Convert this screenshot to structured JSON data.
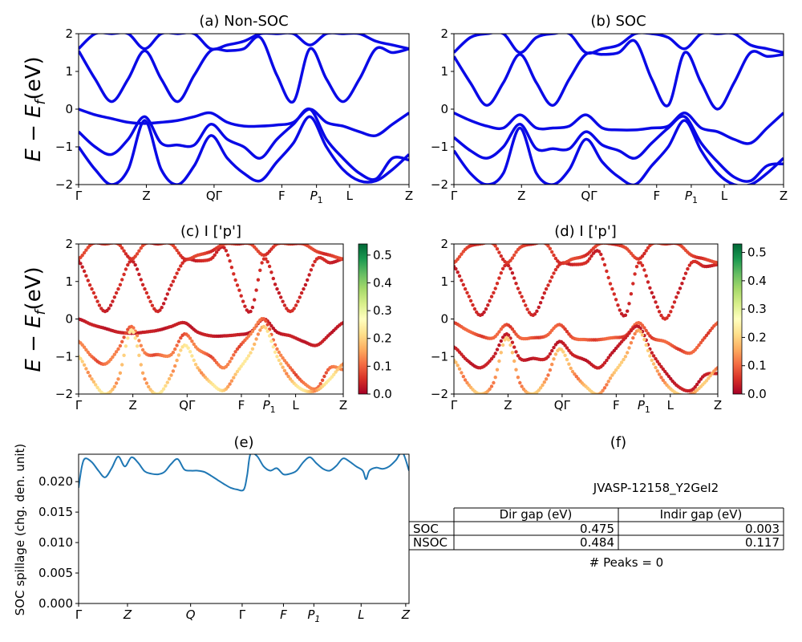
{
  "chart_data": [
    {
      "id": "a",
      "type": "line",
      "title": "(a) Non-SOC",
      "ylabel": "E − E",
      "ylabel_sub": "f",
      "ylabel_unit": "(eV)",
      "ylim": [
        -2,
        2
      ],
      "yticks": [
        "2",
        "1",
        "0",
        "−1",
        "−2"
      ],
      "kpoints": [
        "Γ",
        "Z",
        "QΓ",
        "F",
        "P1",
        "L",
        "Z"
      ],
      "kpoint_fracs": [
        0.0,
        0.205,
        0.41,
        0.615,
        0.72,
        0.82,
        1.0
      ],
      "bands": [
        {
          "x": [
            0.0,
            0.05,
            0.1,
            0.15,
            0.2,
            0.25,
            0.3,
            0.35,
            0.4,
            0.45,
            0.5,
            0.55,
            0.6,
            0.65,
            0.7,
            0.75,
            0.8,
            0.85,
            0.9,
            0.95,
            1.0
          ],
          "y": [
            0.0,
            -0.15,
            -0.25,
            -0.35,
            -0.38,
            -0.35,
            -0.3,
            -0.2,
            -0.1,
            -0.35,
            -0.45,
            -0.45,
            -0.42,
            -0.35,
            0.0,
            -0.35,
            -0.45,
            -0.6,
            -0.7,
            -0.4,
            -0.1
          ]
        },
        {
          "x": [
            0.0,
            0.05,
            0.1,
            0.15,
            0.2,
            0.25,
            0.3,
            0.35,
            0.4,
            0.45,
            0.5,
            0.55,
            0.6,
            0.65,
            0.7,
            0.75,
            0.8,
            0.85,
            0.9,
            0.95,
            1.0
          ],
          "y": [
            -0.6,
            -1.0,
            -1.2,
            -0.8,
            -0.2,
            -0.9,
            -0.95,
            -0.95,
            -0.4,
            -0.8,
            -1.0,
            -1.3,
            -0.8,
            -0.4,
            0.0,
            -0.8,
            -1.3,
            -1.7,
            -1.85,
            -1.3,
            -1.35
          ]
        },
        {
          "x": [
            0.0,
            0.05,
            0.1,
            0.15,
            0.2,
            0.25,
            0.3,
            0.35,
            0.4,
            0.45,
            0.5,
            0.55,
            0.6,
            0.65,
            0.7,
            0.75,
            0.8,
            0.85,
            0.9,
            0.95,
            1.0
          ],
          "y": [
            -1.0,
            -1.6,
            -2.0,
            -1.6,
            -0.3,
            -1.6,
            -2.0,
            -1.5,
            -0.7,
            -1.3,
            -1.7,
            -1.9,
            -1.4,
            -0.9,
            -0.2,
            -1.0,
            -1.6,
            -1.9,
            -1.9,
            -1.6,
            -1.2
          ]
        },
        {
          "x": [
            0.0,
            0.05,
            0.1,
            0.15,
            0.2,
            0.25,
            0.3,
            0.35,
            0.4,
            0.45,
            0.5,
            0.55,
            0.6,
            0.65,
            0.7,
            0.75,
            0.8,
            0.85,
            0.9,
            0.95,
            1.0
          ],
          "y": [
            1.55,
            0.8,
            0.2,
            0.8,
            1.55,
            0.8,
            0.2,
            0.9,
            1.55,
            1.55,
            1.6,
            1.9,
            0.9,
            0.2,
            1.6,
            0.8,
            0.2,
            0.8,
            1.6,
            1.5,
            1.6
          ]
        },
        {
          "x": [
            0.0,
            0.05,
            0.1,
            0.15,
            0.2,
            0.25,
            0.3,
            0.35,
            0.4,
            0.45,
            0.5,
            0.55,
            0.6,
            0.65,
            0.7,
            0.75,
            0.8,
            0.85,
            0.9,
            0.95,
            1.0
          ],
          "y": [
            1.6,
            2.0,
            2.0,
            2.0,
            1.6,
            2.0,
            2.0,
            2.0,
            1.6,
            1.7,
            1.8,
            2.0,
            2.0,
            2.0,
            1.7,
            2.0,
            2.0,
            2.0,
            1.8,
            1.7,
            1.6
          ]
        }
      ]
    },
    {
      "id": "b",
      "type": "line",
      "title": "(b) SOC",
      "ylim": [
        -2,
        2
      ],
      "yticks": [
        "2",
        "1",
        "0",
        "−1",
        "−2"
      ],
      "kpoints": [
        "Γ",
        "Z",
        "QΓ",
        "F",
        "P1",
        "L",
        "Z"
      ],
      "kpoint_fracs": [
        0.0,
        0.205,
        0.41,
        0.615,
        0.72,
        0.82,
        1.0
      ],
      "bands": [
        {
          "x": [
            0.0,
            0.05,
            0.1,
            0.15,
            0.2,
            0.25,
            0.3,
            0.35,
            0.4,
            0.45,
            0.5,
            0.55,
            0.6,
            0.65,
            0.7,
            0.75,
            0.8,
            0.85,
            0.9,
            0.95,
            1.0
          ],
          "y": [
            -0.1,
            -0.3,
            -0.45,
            -0.5,
            -0.15,
            -0.5,
            -0.5,
            -0.45,
            -0.15,
            -0.5,
            -0.55,
            -0.55,
            -0.5,
            -0.45,
            -0.1,
            -0.5,
            -0.6,
            -0.8,
            -0.9,
            -0.5,
            -0.1
          ]
        },
        {
          "x": [
            0.0,
            0.05,
            0.1,
            0.15,
            0.2,
            0.25,
            0.3,
            0.35,
            0.4,
            0.45,
            0.5,
            0.55,
            0.6,
            0.65,
            0.7,
            0.75,
            0.8,
            0.85,
            0.9,
            0.95,
            1.0
          ],
          "y": [
            -0.75,
            -1.1,
            -1.3,
            -1.0,
            -0.4,
            -1.05,
            -1.05,
            -1.05,
            -0.6,
            -0.95,
            -1.1,
            -1.3,
            -0.9,
            -0.5,
            -0.2,
            -0.9,
            -1.4,
            -1.8,
            -1.9,
            -1.5,
            -1.45
          ]
        },
        {
          "x": [
            0.0,
            0.05,
            0.1,
            0.15,
            0.2,
            0.25,
            0.3,
            0.35,
            0.4,
            0.45,
            0.5,
            0.55,
            0.6,
            0.65,
            0.7,
            0.75,
            0.8,
            0.85,
            0.9,
            0.95,
            1.0
          ],
          "y": [
            -1.1,
            -1.7,
            -2.0,
            -1.7,
            -0.5,
            -1.7,
            -2.0,
            -1.6,
            -0.8,
            -1.4,
            -1.8,
            -2.0,
            -1.5,
            -1.0,
            -0.3,
            -1.1,
            -1.7,
            -2.0,
            -2.0,
            -1.7,
            -1.3
          ]
        },
        {
          "x": [
            0.0,
            0.05,
            0.1,
            0.15,
            0.2,
            0.25,
            0.3,
            0.35,
            0.4,
            0.45,
            0.5,
            0.55,
            0.6,
            0.65,
            0.7,
            0.75,
            0.8,
            0.85,
            0.9,
            0.95,
            1.0
          ],
          "y": [
            1.4,
            0.7,
            0.1,
            0.7,
            1.45,
            0.7,
            0.1,
            0.8,
            1.45,
            1.45,
            1.5,
            1.8,
            0.8,
            0.1,
            1.5,
            0.7,
            0.0,
            0.7,
            1.5,
            1.4,
            1.45
          ]
        },
        {
          "x": [
            0.0,
            0.05,
            0.1,
            0.15,
            0.2,
            0.25,
            0.3,
            0.35,
            0.4,
            0.45,
            0.5,
            0.55,
            0.6,
            0.65,
            0.7,
            0.75,
            0.8,
            0.85,
            0.9,
            0.95,
            1.0
          ],
          "y": [
            1.5,
            1.9,
            2.0,
            2.0,
            1.5,
            1.9,
            2.0,
            2.0,
            1.5,
            1.6,
            1.7,
            2.0,
            2.0,
            1.9,
            1.6,
            2.0,
            2.0,
            2.0,
            1.7,
            1.6,
            1.5
          ]
        }
      ]
    },
    {
      "id": "c",
      "type": "scatter",
      "title": "(c)  I ['p']",
      "ylabel": "E − E",
      "ylabel_sub": "f",
      "ylabel_unit": "(eV)",
      "ylim": [
        -2,
        2
      ],
      "yticks": [
        "2",
        "1",
        "0",
        "−1",
        "−2"
      ],
      "kpoints": [
        "Γ",
        "Z",
        "QΓ",
        "F",
        "P1",
        "L",
        "Z"
      ],
      "kpoint_fracs": [
        0.0,
        0.205,
        0.41,
        0.615,
        0.72,
        0.82,
        1.0
      ],
      "colorbar": {
        "min": 0.0,
        "max": 0.54,
        "ticks": [
          "0.0",
          "0.1",
          "0.2",
          "0.3",
          "0.4",
          "0.5"
        ],
        "tick_values": [
          0.0,
          0.1,
          0.2,
          0.3,
          0.4,
          0.5
        ],
        "colormap": "RdYlGn"
      },
      "band_weights": [
        0.03,
        0.1,
        0.18,
        0.04,
        0.06
      ]
    },
    {
      "id": "d",
      "type": "scatter",
      "title": "(d) I ['p']",
      "ylim": [
        -2,
        2
      ],
      "yticks": [
        "2",
        "1",
        "0",
        "−1",
        "−2"
      ],
      "kpoints": [
        "Γ",
        "Z",
        "QΓ",
        "F",
        "P1",
        "L",
        "Z"
      ],
      "kpoint_fracs": [
        0.0,
        0.205,
        0.41,
        0.615,
        0.72,
        0.82,
        1.0
      ],
      "colorbar": {
        "min": 0.0,
        "max": 0.53,
        "ticks": [
          "0.0",
          "0.1",
          "0.2",
          "0.3",
          "0.4",
          "0.5"
        ],
        "tick_values": [
          0.0,
          0.1,
          0.2,
          0.3,
          0.4,
          0.5
        ],
        "colormap": "RdYlGn"
      },
      "band_weights": [
        0.08,
        0.03,
        0.15,
        0.04,
        0.06
      ]
    },
    {
      "id": "e",
      "type": "line",
      "title": "(e)",
      "ylabel": "SOC spillage (chg. den. unit)",
      "ylim": [
        0.0,
        0.0245
      ],
      "yticks": [
        "0.000",
        "0.005",
        "0.010",
        "0.015",
        "0.020"
      ],
      "ytick_values": [
        0.0,
        0.005,
        0.01,
        0.015,
        0.02
      ],
      "kpoints": [
        "Γ",
        "Z",
        "Q",
        "Γ",
        "F",
        "P1",
        "L",
        "Z"
      ],
      "kpoint_fracs": [
        0.0,
        0.148,
        0.339,
        0.495,
        0.62,
        0.712,
        0.855,
        0.99
      ],
      "x": [
        0.0,
        0.01,
        0.02,
        0.04,
        0.06,
        0.08,
        0.1,
        0.12,
        0.14,
        0.16,
        0.18,
        0.2,
        0.22,
        0.24,
        0.26,
        0.28,
        0.3,
        0.32,
        0.34,
        0.36,
        0.38,
        0.4,
        0.42,
        0.44,
        0.46,
        0.48,
        0.5,
        0.51,
        0.52,
        0.54,
        0.56,
        0.58,
        0.6,
        0.62,
        0.64,
        0.66,
        0.68,
        0.7,
        0.72,
        0.74,
        0.76,
        0.78,
        0.8,
        0.82,
        0.84,
        0.86,
        0.87,
        0.88,
        0.9,
        0.92,
        0.94,
        0.96,
        0.98,
        1.0
      ],
      "y": [
        0.019,
        0.0225,
        0.0238,
        0.0232,
        0.0218,
        0.0207,
        0.0222,
        0.0241,
        0.0225,
        0.024,
        0.0231,
        0.0217,
        0.0213,
        0.0212,
        0.0216,
        0.0229,
        0.0237,
        0.022,
        0.0218,
        0.0218,
        0.0216,
        0.021,
        0.0203,
        0.0196,
        0.019,
        0.0187,
        0.0187,
        0.021,
        0.0245,
        0.0242,
        0.0225,
        0.0218,
        0.0222,
        0.0212,
        0.0213,
        0.0218,
        0.0232,
        0.024,
        0.023,
        0.0221,
        0.0218,
        0.0226,
        0.0238,
        0.0233,
        0.0225,
        0.0218,
        0.0204,
        0.0218,
        0.0223,
        0.0221,
        0.0225,
        0.0235,
        0.0248,
        0.0218
      ]
    }
  ],
  "panel_f": {
    "title": "(f)",
    "material": "JVASP-12158_Y2GeI2",
    "table": {
      "headers": [
        "Dir gap (eV)",
        "Indir gap (eV)"
      ],
      "rows": [
        {
          "label": "SOC",
          "values": [
            "0.475",
            "0.003"
          ]
        },
        {
          "label": "NSOC",
          "values": [
            "0.484",
            "0.117"
          ]
        }
      ]
    },
    "peaks": "# Peaks = 0"
  },
  "colors": {
    "band_line": "#0a0ae6",
    "spillage_line": "#1f77b4"
  }
}
